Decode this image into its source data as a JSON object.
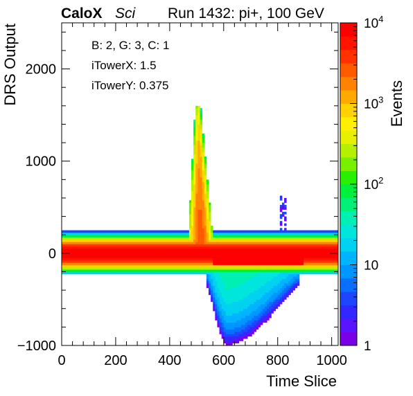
{
  "header": {
    "brand": "CaloX",
    "subtitle": "Sci",
    "run_info": "Run 1432: pi+, 100 GeV"
  },
  "annotations": [
    "B: 2, G: 3, C: 1",
    "iTowerX: 1.5",
    "iTowerY: 0.375"
  ],
  "chart_data": {
    "type": "heatmap",
    "xlabel": "Time Slice",
    "ylabel": "DRS Output",
    "zlabel": "Events",
    "xlim": [
      0,
      1024
    ],
    "ylim": [
      -1000,
      2500
    ],
    "x_ticks": [
      0,
      200,
      400,
      600,
      800,
      1000
    ],
    "y_ticks": [
      -1000,
      0,
      1000,
      2000
    ],
    "z_scale": "log",
    "zlim": [
      1,
      10000
    ],
    "z_ticks": [
      {
        "value": 1,
        "label": "1"
      },
      {
        "value": 10,
        "label": "10"
      },
      {
        "value": 100,
        "label": "10^2"
      },
      {
        "value": 1000,
        "label": "10^3"
      },
      {
        "value": 10000,
        "label": "10^4"
      }
    ],
    "palette": [
      "#7a00e8",
      "#5a14ff",
      "#3228ff",
      "#1e46ff",
      "#0a6eff",
      "#0096ff",
      "#00b4ff",
      "#00d2f0",
      "#00e6dc",
      "#00f0b4",
      "#00f078",
      "#00f03c",
      "#28f000",
      "#78f000",
      "#b4f000",
      "#e6f000",
      "#fff000",
      "#ffd200",
      "#ffaa00",
      "#ff8200",
      "#ff5a00",
      "#ff3200",
      "#ff1400",
      "#ff0000"
    ],
    "features": {
      "baseline_band": {
        "x_range": [
          0,
          1024
        ],
        "y_range": [
          -220,
          240
        ],
        "peak_events": 10000
      },
      "pulse": {
        "x_range": [
          465,
          565
        ],
        "y_top": 1600,
        "peak_events": 3000
      },
      "undershoot": {
        "x_range": [
          540,
          880
        ],
        "y_min": -990,
        "peak_events": 60
      },
      "spike": {
        "x_range": [
          805,
          830
        ],
        "y_max": 620,
        "peak_events": 3
      }
    }
  }
}
